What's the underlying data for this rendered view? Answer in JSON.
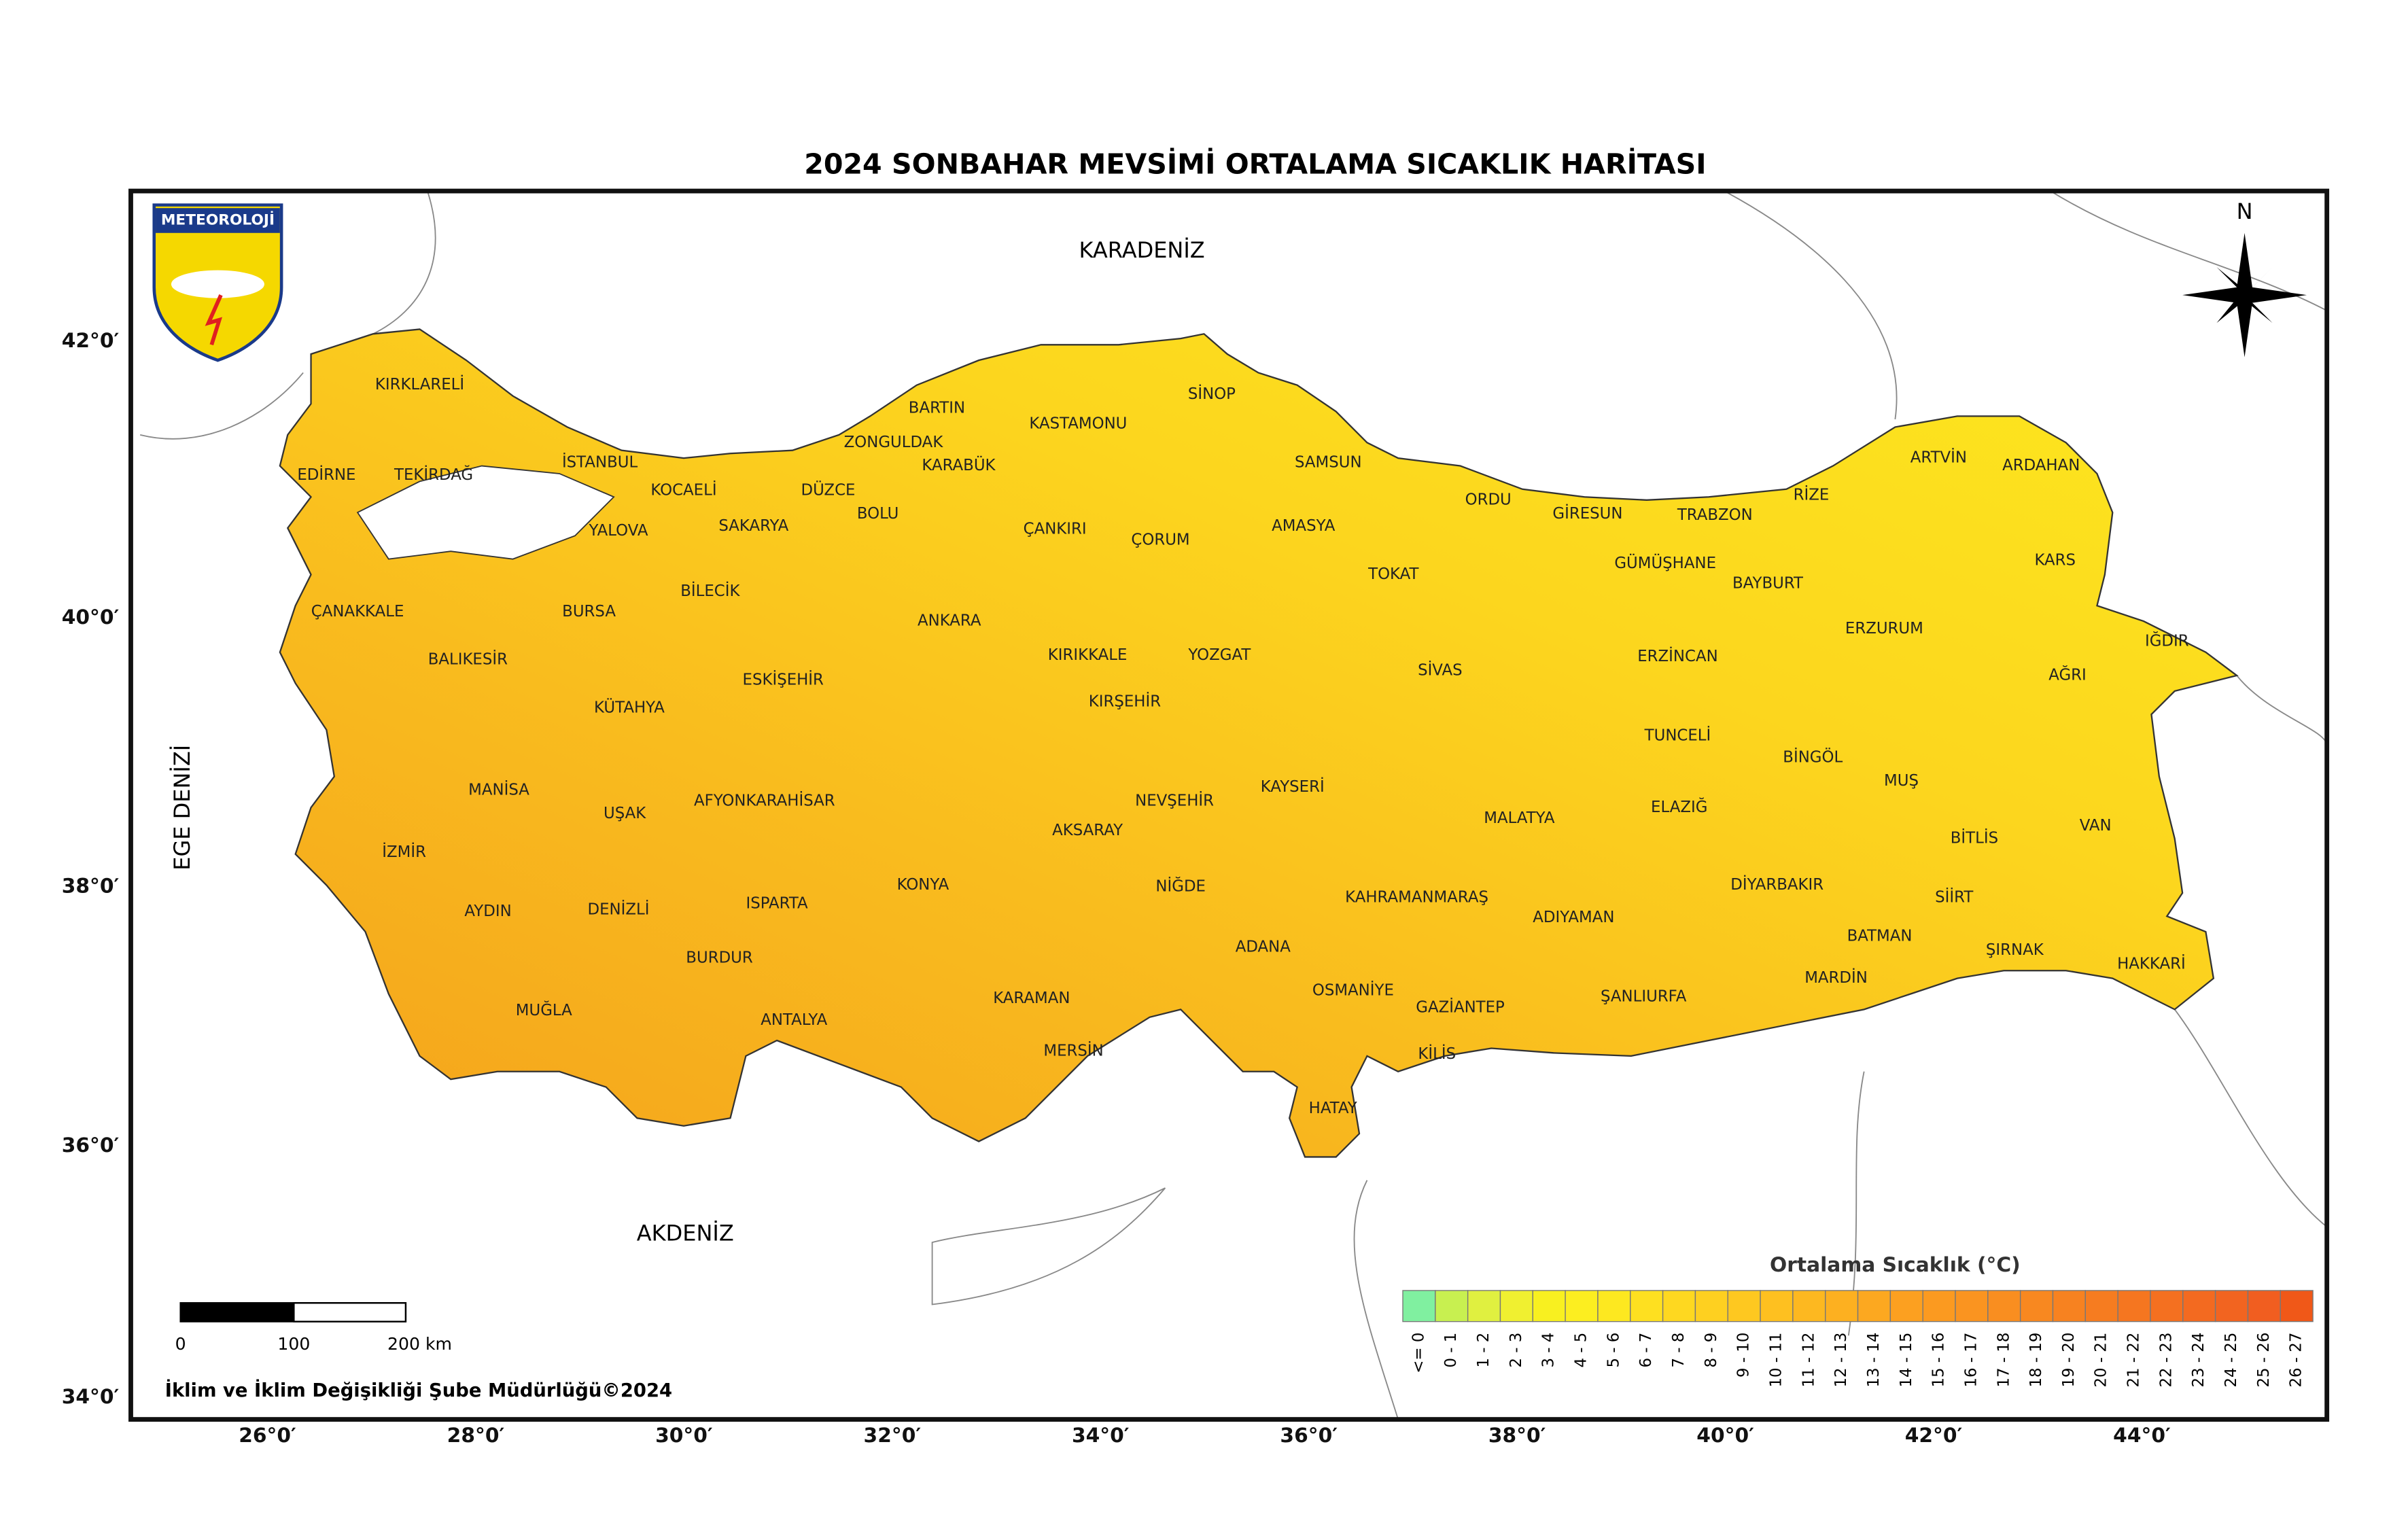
{
  "title": "2024 SONBAHAR MEVSİMİ ORTALAMA SICAKLIK HARİTASI",
  "logo": "METEOROLOJİ",
  "north": "N",
  "seas": [
    "KARADENİZ",
    "AKDENİZ",
    "EGE DENİZİ"
  ],
  "latitudes": [
    "42°0′",
    "40°0′",
    "38°0′",
    "36°0′",
    "34°0′"
  ],
  "longitudes": [
    "26°0′",
    "28°0′",
    "30°0′",
    "32°0′",
    "34°0′",
    "36°0′",
    "38°0′",
    "40°0′",
    "42°0′",
    "44°0′"
  ],
  "provinces": [
    "KIRKLARELİ",
    "EDİRNE",
    "TEKİRDAĞ",
    "İSTANBUL",
    "KOCAELİ",
    "YALOVA",
    "SAKARYA",
    "DÜZCE",
    "BOLU",
    "ZONGULDAK",
    "BARTIN",
    "KARABÜK",
    "KASTAMONU",
    "SİNOP",
    "SAMSUN",
    "ÇANKIRI",
    "ÇORUM",
    "AMASYA",
    "ORDU",
    "GİRESUN",
    "TRABZON",
    "RİZE",
    "ARTVİN",
    "ARDAHAN",
    "GÜMÜŞHANE",
    "BAYBURT",
    "KARS",
    "TOKAT",
    "ÇANAKKALE",
    "BALIKESİR",
    "BURSA",
    "BİLECİK",
    "ESKİŞEHİR",
    "ANKARA",
    "KIRIKKALE",
    "YOZGAT",
    "SİVAS",
    "ERZİNCAN",
    "ERZURUM",
    "IĞDIR",
    "AĞRI",
    "KÜTAHYA",
    "KIRŞEHİR",
    "TUNCELİ",
    "BİNGÖL",
    "MUŞ",
    "MANİSA",
    "UŞAK",
    "AFYONKARAHİSAR",
    "NEVŞEHİR",
    "KAYSERİ",
    "ELAZIĞ",
    "MALATYA",
    "BİTLİS",
    "VAN",
    "İZMİR",
    "AKSARAY",
    "KONYA",
    "NİĞDE",
    "KAHRAMANMARAŞ",
    "DİYARBAKIR",
    "SİİRT",
    "AYDIN",
    "DENİZLİ",
    "ISPARTA",
    "ADIYAMAN",
    "BATMAN",
    "ŞIRNAK",
    "HAKKARİ",
    "BURDUR",
    "ADANA",
    "OSMANİYE",
    "KARAMAN",
    "GAZİANTEP",
    "ŞANLIURFA",
    "MARDİN",
    "MUĞLA",
    "ANTALYA",
    "MERSİN",
    "KİLİS",
    "HATAY"
  ],
  "legend": {
    "title": "Ortalama Sıcaklık (°C)",
    "classes": [
      {
        "label": "<= 0",
        "color": "#80f0a0"
      },
      {
        "label": "0 - 1",
        "color": "#c8f050"
      },
      {
        "label": "1 - 2",
        "color": "#e0f040"
      },
      {
        "label": "2 - 3",
        "color": "#f0f030"
      },
      {
        "label": "3 - 4",
        "color": "#f8f020"
      },
      {
        "label": "4 - 5",
        "color": "#fcee20"
      },
      {
        "label": "5 - 6",
        "color": "#fde820"
      },
      {
        "label": "6 - 7",
        "color": "#fee020"
      },
      {
        "label": "7 - 8",
        "color": "#fed820"
      },
      {
        "label": "8 - 9",
        "color": "#fed020"
      },
      {
        "label": "9 - 10",
        "color": "#fec820"
      },
      {
        "label": "10 - 11",
        "color": "#fec020"
      },
      {
        "label": "11 - 12",
        "color": "#fdb820"
      },
      {
        "label": "12 - 13",
        "color": "#fdb020"
      },
      {
        "label": "13 - 14",
        "color": "#fca820"
      },
      {
        "label": "14 - 15",
        "color": "#fca020"
      },
      {
        "label": "15 - 16",
        "color": "#fb9a20"
      },
      {
        "label": "16 - 17",
        "color": "#fa9420"
      },
      {
        "label": "17 - 18",
        "color": "#f98e20"
      },
      {
        "label": "18 - 19",
        "color": "#f88820"
      },
      {
        "label": "19 - 20",
        "color": "#f78220"
      },
      {
        "label": "20 - 21",
        "color": "#f67c20"
      },
      {
        "label": "21 - 22",
        "color": "#f57620"
      },
      {
        "label": "22 - 23",
        "color": "#f47020"
      },
      {
        "label": "23 - 24",
        "color": "#f36a20"
      },
      {
        "label": "24 - 25",
        "color": "#f26420"
      },
      {
        "label": "25 - 26",
        "color": "#f15e20"
      },
      {
        "label": "26 - 27",
        "color": "#f05818"
      }
    ]
  },
  "scale_bar": [
    "0",
    "100",
    "200 km"
  ],
  "credit": "İklim ve İklim Değişikliği Şube Müdürlüğü©2024"
}
